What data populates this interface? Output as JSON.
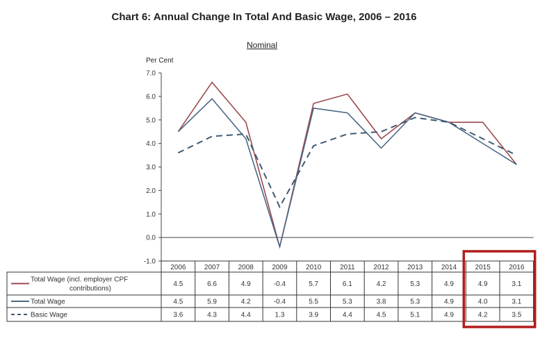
{
  "chart_data": {
    "type": "line",
    "title": "Chart 6: Annual Change In Total And Basic Wage, 2006 – 2016",
    "subtitle": "Nominal",
    "ylabel": "Per Cent",
    "xlabel": "",
    "ylim": [
      -1.0,
      7.0
    ],
    "yticks": [
      "7.0",
      "6.0",
      "5.0",
      "4.0",
      "3.0",
      "2.0",
      "1.0",
      "0.0",
      "-1.0"
    ],
    "categories": [
      "2006",
      "2007",
      "2008",
      "2009",
      "2010",
      "2011",
      "2012",
      "2013",
      "2014",
      "2015",
      "2016"
    ],
    "series": [
      {
        "name": "Total Wage (incl. employer CPF contributions)",
        "name_line1": "Total Wage (incl. employer CPF",
        "name_line2": "contributions)",
        "color": "#9b4a4f",
        "style": "solid",
        "values": [
          4.5,
          6.6,
          4.9,
          -0.4,
          5.7,
          6.1,
          4.2,
          5.3,
          4.9,
          4.9,
          3.1
        ],
        "labels": [
          "4.5",
          "6.6",
          "4.9",
          "-0.4",
          "5.7",
          "6.1",
          "4.2",
          "5.3",
          "4.9",
          "4.9",
          "3.1"
        ]
      },
      {
        "name": "Total Wage",
        "color": "#4b6784",
        "style": "solid",
        "values": [
          4.5,
          5.9,
          4.2,
          -0.4,
          5.5,
          5.3,
          3.8,
          5.3,
          4.9,
          4.0,
          3.1
        ],
        "labels": [
          "4.5",
          "5.9",
          "4.2",
          "-0.4",
          "5.5",
          "5.3",
          "3.8",
          "5.3",
          "4.9",
          "4.0",
          "3.1"
        ]
      },
      {
        "name": "Basic Wage",
        "color": "#3f5a72",
        "style": "dashed",
        "values": [
          3.6,
          4.3,
          4.4,
          1.3,
          3.9,
          4.4,
          4.5,
          5.1,
          4.9,
          4.2,
          3.5
        ],
        "labels": [
          "3.6",
          "4.3",
          "4.4",
          "1.3",
          "3.9",
          "4.4",
          "4.5",
          "5.1",
          "4.9",
          "4.2",
          "3.5"
        ]
      }
    ],
    "grid": false,
    "legend": "data-table-below",
    "highlight": {
      "categories": [
        "2015",
        "2016"
      ],
      "color": "#b01c1c"
    }
  }
}
